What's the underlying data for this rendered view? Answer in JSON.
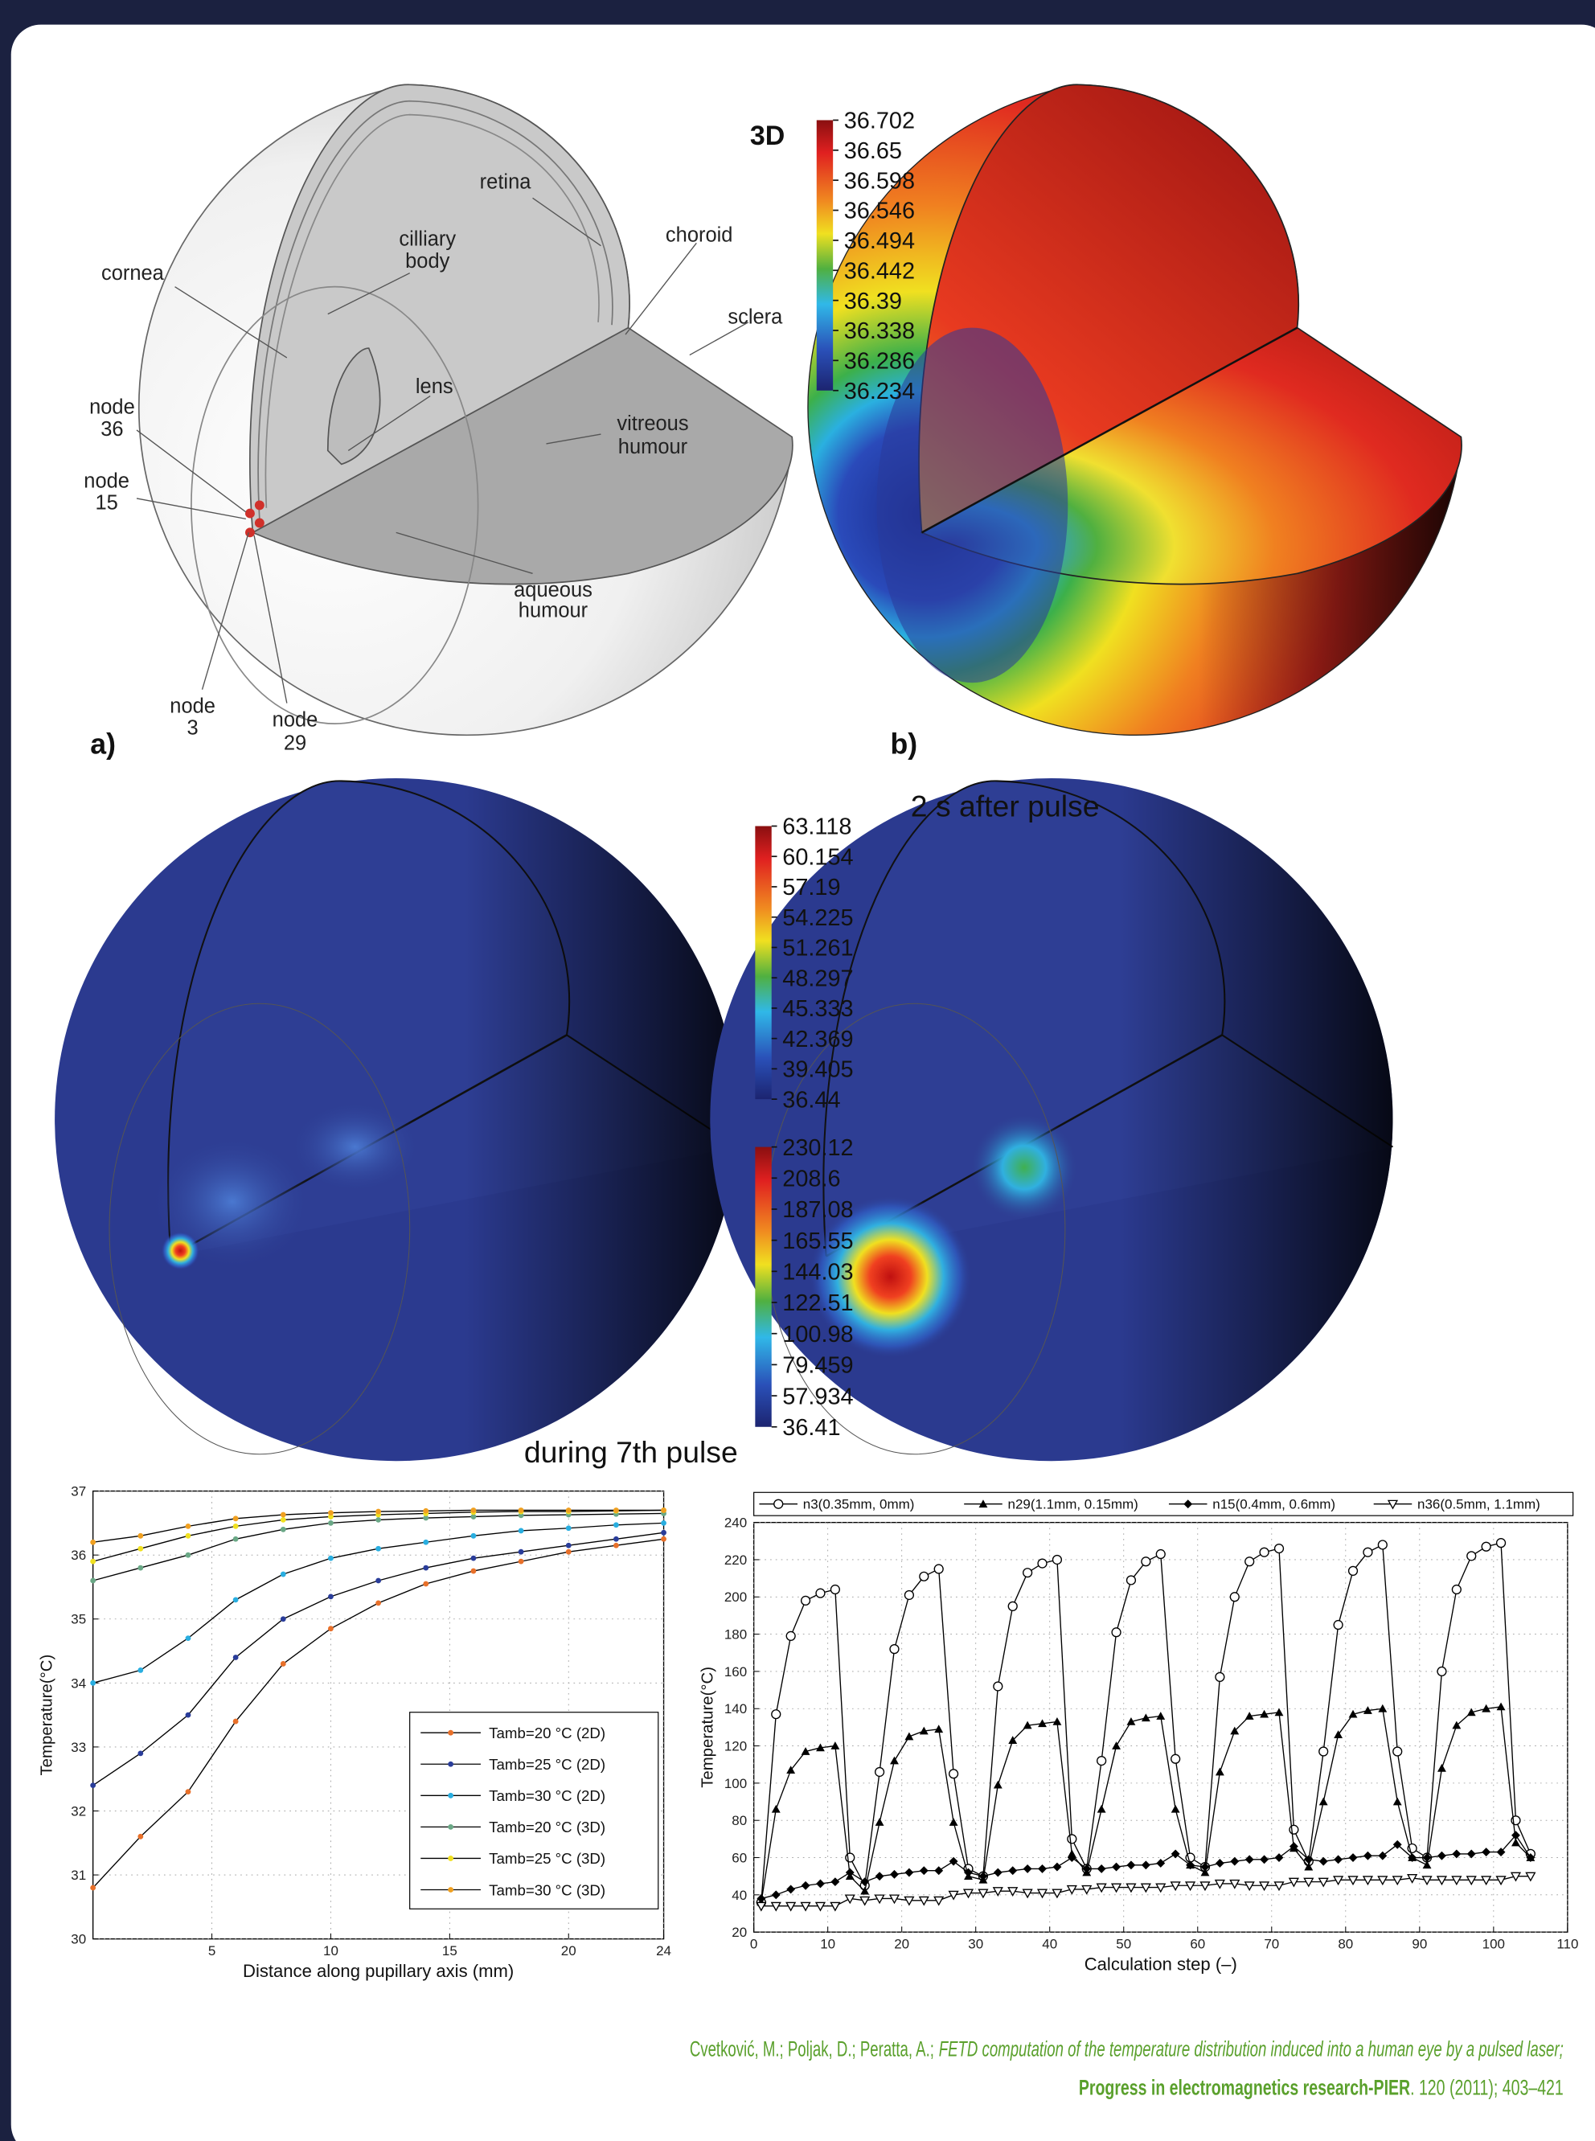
{
  "panel_a": {
    "tag": "a)",
    "cornea": "cornea",
    "cilliary_body": [
      "cilliary",
      "body"
    ],
    "retina": "retina",
    "choroid": "choroid",
    "sclera": "sclera",
    "lens": "lens",
    "vitreous_humour": [
      "vitreous",
      "humour"
    ],
    "aqueous_humour": [
      "aqueous",
      "humour"
    ],
    "node_36": [
      "node",
      "36"
    ],
    "node_15": [
      "node",
      "15"
    ],
    "node_3": [
      "node",
      "3"
    ],
    "node_29": [
      "node",
      "29"
    ]
  },
  "panel_b": {
    "tag": "b)",
    "colorbar": {
      "title": "3D",
      "ticks": [
        36.702,
        36.65,
        36.598,
        36.546,
        36.494,
        36.442,
        36.39,
        36.338,
        36.286,
        36.234
      ]
    }
  },
  "panels_cd": {
    "title_top": "2 s after pulse",
    "title_bottom": "during 7th pulse",
    "colorbar_top": {
      "ticks": [
        63.118,
        60.154,
        57.19,
        54.225,
        51.261,
        48.297,
        45.333,
        42.369,
        39.405,
        36.44
      ]
    },
    "colorbar_bottom": {
      "ticks": [
        230.12,
        208.6,
        187.08,
        165.55,
        144.03,
        122.51,
        100.98,
        79.459,
        57.934,
        36.41
      ]
    }
  },
  "chart_data": [
    {
      "type": "line",
      "xlabel": "Distance along pupillary axis (mm)",
      "ylabel": "Temperature(°C)",
      "x": [
        0,
        2,
        4,
        6,
        8,
        10,
        12,
        14,
        16,
        18,
        20,
        22,
        24
      ],
      "xlim": [
        0,
        24
      ],
      "xticks": [
        5,
        10,
        15,
        20,
        24
      ],
      "ylim": [
        30,
        37
      ],
      "yticks": [
        30,
        31,
        32,
        33,
        34,
        35,
        36,
        37
      ],
      "grid": true,
      "legend": "lower right",
      "line_color": "#000000",
      "series": [
        {
          "name": "Tamb=20 °C (2D)",
          "color": "#e8702a",
          "marker": "circle",
          "values": [
            30.8,
            31.6,
            32.3,
            33.4,
            34.3,
            34.85,
            35.25,
            35.55,
            35.75,
            35.9,
            36.05,
            36.15,
            36.25
          ]
        },
        {
          "name": "Tamb=25 °C (2D)",
          "color": "#2a3d9a",
          "marker": "circle",
          "values": [
            32.4,
            32.9,
            33.5,
            34.4,
            35.0,
            35.35,
            35.6,
            35.8,
            35.95,
            36.05,
            36.15,
            36.25,
            36.35
          ]
        },
        {
          "name": "Tamb=30 °C (2D)",
          "color": "#29aee0",
          "marker": "circle",
          "values": [
            34.0,
            34.2,
            34.7,
            35.3,
            35.7,
            35.95,
            36.1,
            36.2,
            36.3,
            36.38,
            36.42,
            36.47,
            36.5
          ]
        },
        {
          "name": "Tamb=20 °C (3D)",
          "color": "#6aa886",
          "marker": "circle",
          "values": [
            35.6,
            35.8,
            36.0,
            36.25,
            36.4,
            36.5,
            36.55,
            36.58,
            36.6,
            36.62,
            36.63,
            36.64,
            36.65
          ]
        },
        {
          "name": "Tamb=25 °C (3D)",
          "color": "#f0e020",
          "marker": "circle",
          "values": [
            35.9,
            36.1,
            36.3,
            36.45,
            36.55,
            36.6,
            36.63,
            36.65,
            36.67,
            36.68,
            36.68,
            36.69,
            36.7
          ]
        },
        {
          "name": "Tamb=30 °C (3D)",
          "color": "#f0a020",
          "marker": "circle",
          "values": [
            36.2,
            36.3,
            36.45,
            36.57,
            36.63,
            36.66,
            36.68,
            36.69,
            36.7,
            36.7,
            36.7,
            36.7,
            36.7
          ]
        }
      ]
    },
    {
      "type": "line",
      "xlabel": "Calculation step (–)",
      "ylabel": "Temperature(°C)",
      "x": [
        1,
        3,
        5,
        7,
        9,
        11,
        13,
        15,
        17,
        19,
        21,
        23,
        25,
        27,
        29,
        31,
        33,
        35,
        37,
        39,
        41,
        43,
        45,
        47,
        49,
        51,
        53,
        55,
        57,
        59,
        61,
        63,
        65,
        67,
        69,
        71,
        73,
        75,
        77,
        79,
        81,
        83,
        85,
        87,
        89,
        91,
        93,
        95,
        97,
        99,
        101,
        103,
        105
      ],
      "xlim": [
        0,
        110
      ],
      "xticks": [
        0,
        10,
        20,
        30,
        40,
        50,
        60,
        70,
        80,
        90,
        100,
        110
      ],
      "ylim": [
        20,
        240
      ],
      "yticks": [
        20,
        40,
        60,
        80,
        100,
        120,
        140,
        160,
        180,
        200,
        220,
        240
      ],
      "grid": true,
      "legend": "top",
      "line_color": "#000000",
      "series": [
        {
          "name": "n3(0.35mm, 0mm)",
          "color": "#000000",
          "marker": "circle-open",
          "values": [
            36,
            137,
            179,
            198,
            202,
            204,
            60,
            45,
            106,
            172,
            201,
            211,
            215,
            105,
            54,
            50,
            152,
            195,
            213,
            218,
            220,
            70,
            54,
            112,
            181,
            209,
            219,
            223,
            113,
            60,
            55,
            157,
            200,
            219,
            224,
            226,
            75,
            58,
            117,
            185,
            214,
            224,
            228,
            117,
            65,
            60,
            160,
            204,
            222,
            227,
            229,
            80,
            62
          ]
        },
        {
          "name": "n29(1.1mm, 0.15mm)",
          "color": "#000000",
          "marker": "triangle",
          "values": [
            36,
            86,
            107,
            117,
            119,
            120,
            50,
            42,
            79,
            112,
            125,
            128,
            129,
            79,
            50,
            48,
            99,
            123,
            131,
            132,
            133,
            62,
            52,
            86,
            120,
            133,
            135,
            136,
            86,
            56,
            52,
            106,
            128,
            136,
            137,
            138,
            65,
            55,
            90,
            126,
            137,
            139,
            140,
            90,
            60,
            56,
            108,
            131,
            138,
            140,
            141,
            68,
            60
          ]
        },
        {
          "name": "n15(0.4mm, 0.6mm)",
          "color": "#000000",
          "marker": "diamond",
          "values": [
            38,
            40,
            43,
            45,
            46,
            47,
            52,
            47,
            50,
            51,
            52,
            53,
            53,
            58,
            52,
            50,
            52,
            53,
            54,
            54,
            55,
            60,
            54,
            54,
            55,
            56,
            56,
            57,
            62,
            56,
            55,
            57,
            58,
            59,
            59,
            60,
            66,
            59,
            58,
            59,
            60,
            61,
            61,
            67,
            60,
            60,
            61,
            62,
            62,
            63,
            63,
            72,
            60
          ]
        },
        {
          "name": "n36(0.5mm, 1.1mm)",
          "color": "#000000",
          "marker": "triangle-down-open",
          "values": [
            34,
            34,
            34,
            34,
            34,
            34,
            38,
            37,
            38,
            38,
            37,
            37,
            37,
            40,
            41,
            41,
            42,
            42,
            41,
            41,
            41,
            43,
            43,
            44,
            44,
            44,
            44,
            44,
            45,
            45,
            45,
            46,
            46,
            45,
            45,
            45,
            47,
            47,
            47,
            48,
            48,
            48,
            48,
            48,
            49,
            48,
            48,
            48,
            48,
            48,
            48,
            50,
            50
          ]
        }
      ]
    }
  ],
  "citation": {
    "authors": "Cvetković, M.; Poljak, D.; Peratta, A.;",
    "title": "FETD computation of the temperature distribution induced into a human eye by a pulsed laser;",
    "journal": "Progress in electromagnetics research-PIER",
    "details": ". 120 (2011); 403–421"
  }
}
